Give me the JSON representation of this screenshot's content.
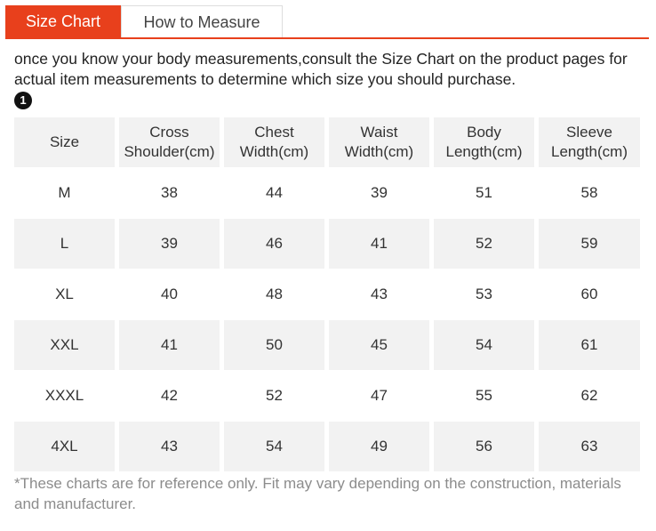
{
  "tabs": [
    {
      "label": "Size Chart",
      "active": true
    },
    {
      "label": "How to Measure",
      "active": false
    }
  ],
  "intro_text": "once you know your body measurements,consult the Size Chart on the product pages for actual item measurements to determine which size you should purchase.",
  "badge_label": "1",
  "table": {
    "headers": [
      {
        "line1": "Size",
        "line2": ""
      },
      {
        "line1": "Cross",
        "line2": "Shoulder(cm)"
      },
      {
        "line1": "Chest",
        "line2": "Width(cm)"
      },
      {
        "line1": "Waist",
        "line2": "Width(cm)"
      },
      {
        "line1": "Body",
        "line2": "Length(cm)"
      },
      {
        "line1": "Sleeve",
        "line2": "Length(cm)"
      }
    ],
    "rows": [
      [
        "M",
        "38",
        "44",
        "39",
        "51",
        "58"
      ],
      [
        "L",
        "39",
        "46",
        "41",
        "52",
        "59"
      ],
      [
        "XL",
        "40",
        "48",
        "43",
        "53",
        "60"
      ],
      [
        "XXL",
        "41",
        "50",
        "45",
        "54",
        "61"
      ],
      [
        "XXXL",
        "42",
        "52",
        "47",
        "55",
        "62"
      ],
      [
        "4XL",
        "43",
        "54",
        "49",
        "56",
        "63"
      ]
    ]
  },
  "footnote": "*These charts are for reference only. Fit may vary depending on the construction, materials and manufacturer.",
  "colors": {
    "accent": "#e8401c",
    "row_shade": "#f2f2f2",
    "footnote_text": "#8c8c8c"
  }
}
